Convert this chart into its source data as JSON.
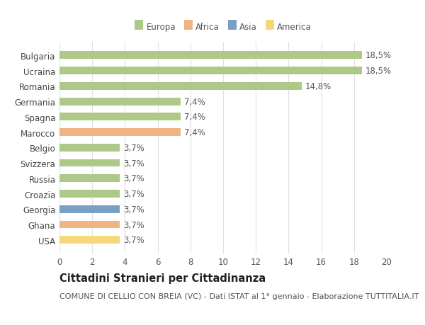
{
  "categories": [
    "Bulgaria",
    "Ucraina",
    "Romania",
    "Germania",
    "Spagna",
    "Marocco",
    "Belgio",
    "Svizzera",
    "Russia",
    "Croazia",
    "Georgia",
    "Ghana",
    "USA"
  ],
  "values": [
    18.5,
    18.5,
    14.8,
    7.4,
    7.4,
    7.4,
    3.7,
    3.7,
    3.7,
    3.7,
    3.7,
    3.7,
    3.7
  ],
  "labels": [
    "18,5%",
    "18,5%",
    "14,8%",
    "7,4%",
    "7,4%",
    "7,4%",
    "3,7%",
    "3,7%",
    "3,7%",
    "3,7%",
    "3,7%",
    "3,7%",
    "3,7%"
  ],
  "colors": [
    "#adc988",
    "#adc988",
    "#adc988",
    "#adc988",
    "#adc988",
    "#f0b482",
    "#adc988",
    "#adc988",
    "#adc988",
    "#adc988",
    "#7a9fc4",
    "#f0b482",
    "#f5d87a"
  ],
  "legend_labels": [
    "Europa",
    "Africa",
    "Asia",
    "America"
  ],
  "legend_colors": [
    "#adc988",
    "#f0b482",
    "#7a9fc4",
    "#f5d87a"
  ],
  "xlim": [
    0,
    20
  ],
  "xticks": [
    0,
    2,
    4,
    6,
    8,
    10,
    12,
    14,
    16,
    18,
    20
  ],
  "title": "Cittadini Stranieri per Cittadinanza",
  "subtitle": "COMUNE DI CELLIO CON BREIA (VC) - Dati ISTAT al 1° gennaio - Elaborazione TUTTITALIA.IT",
  "background_color": "#ffffff",
  "grid_color": "#e0e0e0",
  "bar_height": 0.5,
  "label_fontsize": 8.5,
  "tick_fontsize": 8.5,
  "title_fontsize": 10.5,
  "subtitle_fontsize": 8.0
}
